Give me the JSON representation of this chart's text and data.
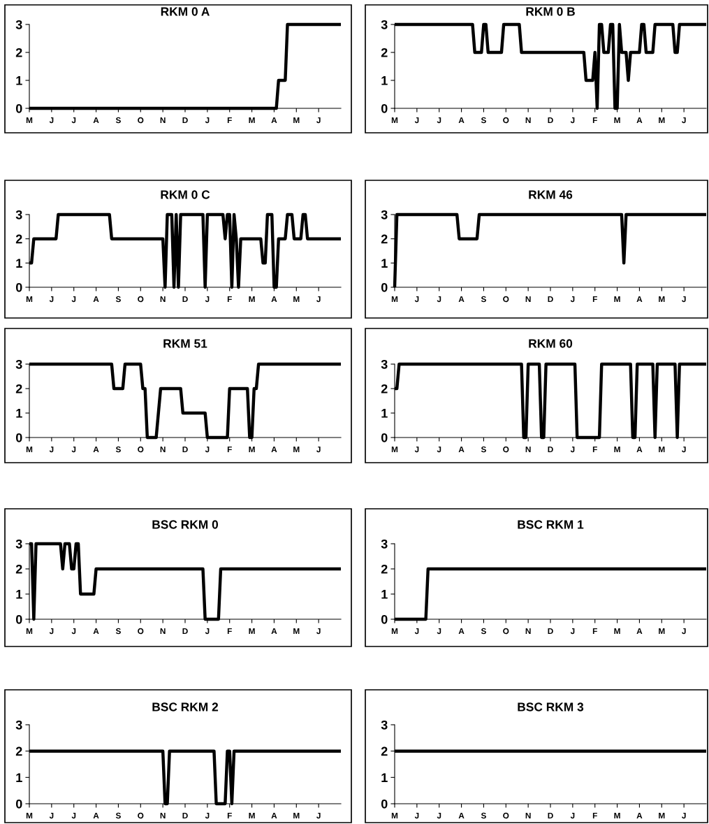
{
  "chart_data": [
    {
      "type": "line",
      "title": "RKM 0 A",
      "color": "#000000",
      "ylim": [
        0,
        3
      ],
      "yticks": [
        0,
        1,
        2,
        3
      ],
      "categories": [
        "M",
        null,
        null,
        null,
        null,
        null,
        null,
        null,
        null,
        null,
        "J",
        null,
        null,
        null,
        null,
        null,
        null,
        null,
        null,
        null,
        "J",
        null,
        null,
        null,
        null,
        null,
        null,
        null,
        null,
        null,
        "A",
        null,
        null,
        null,
        null,
        null,
        null,
        null,
        null,
        null,
        "S",
        null,
        null,
        null,
        null,
        null,
        null,
        null,
        null,
        null,
        "O",
        null,
        null,
        null,
        null,
        null,
        null,
        null,
        null,
        null,
        "N",
        null,
        null,
        null,
        null,
        null,
        null,
        null,
        null,
        null,
        "D",
        null,
        null,
        null,
        null,
        null,
        null,
        null,
        null,
        null,
        "J",
        null,
        null,
        null,
        null,
        null,
        null,
        null,
        null,
        null,
        "F",
        null,
        null,
        null,
        null,
        null,
        null,
        null,
        null,
        null,
        "M",
        null,
        null,
        null,
        null,
        null,
        null,
        null,
        null,
        null,
        "A",
        null,
        null,
        null,
        null,
        null,
        null,
        null,
        null,
        null,
        "M",
        null,
        null,
        null,
        null,
        null,
        null,
        null,
        null,
        null,
        "J",
        null,
        null,
        null,
        null,
        null,
        null,
        null,
        null,
        null,
        null
      ],
      "values": [
        0,
        0,
        0,
        0,
        0,
        0,
        0,
        0,
        0,
        0,
        0,
        0,
        0,
        0,
        0,
        0,
        0,
        0,
        0,
        0,
        0,
        0,
        0,
        0,
        0,
        0,
        0,
        0,
        0,
        0,
        0,
        0,
        0,
        0,
        0,
        0,
        0,
        0,
        0,
        0,
        0,
        0,
        0,
        0,
        0,
        0,
        0,
        0,
        0,
        0,
        0,
        0,
        0,
        0,
        0,
        0,
        0,
        0,
        0,
        0,
        0,
        0,
        0,
        0,
        0,
        0,
        0,
        0,
        0,
        0,
        0,
        0,
        0,
        0,
        0,
        0,
        0,
        0,
        0,
        0,
        0,
        0,
        0,
        0,
        0,
        0,
        0,
        0,
        0,
        0,
        0,
        0,
        0,
        0,
        0,
        0,
        0,
        0,
        0,
        0,
        0,
        0,
        0,
        0,
        0,
        0,
        0,
        0,
        0,
        0,
        0,
        0,
        1,
        1,
        1,
        1,
        3,
        3,
        3,
        3,
        3,
        3,
        3,
        3,
        3,
        3,
        3,
        3,
        3,
        3,
        3,
        3,
        3,
        3,
        3,
        3,
        3,
        3,
        3,
        3,
        3
      ]
    },
    {
      "type": "line",
      "title": "RKM 0 B",
      "color": "#000000",
      "ylim": [
        0,
        3
      ],
      "yticks": [
        0,
        1,
        2,
        3
      ],
      "categories": [
        "M",
        null,
        null,
        null,
        null,
        null,
        null,
        null,
        null,
        null,
        "J",
        null,
        null,
        null,
        null,
        null,
        null,
        null,
        null,
        null,
        "J",
        null,
        null,
        null,
        null,
        null,
        null,
        null,
        null,
        null,
        "A",
        null,
        null,
        null,
        null,
        null,
        null,
        null,
        null,
        null,
        "S",
        null,
        null,
        null,
        null,
        null,
        null,
        null,
        null,
        null,
        "O",
        null,
        null,
        null,
        null,
        null,
        null,
        null,
        null,
        null,
        "N",
        null,
        null,
        null,
        null,
        null,
        null,
        null,
        null,
        null,
        "D",
        null,
        null,
        null,
        null,
        null,
        null,
        null,
        null,
        null,
        "J",
        null,
        null,
        null,
        null,
        null,
        null,
        null,
        null,
        null,
        "F",
        null,
        null,
        null,
        null,
        null,
        null,
        null,
        null,
        null,
        "M",
        null,
        null,
        null,
        null,
        null,
        null,
        null,
        null,
        null,
        "A",
        null,
        null,
        null,
        null,
        null,
        null,
        null,
        null,
        null,
        "M",
        null,
        null,
        null,
        null,
        null,
        null,
        null,
        null,
        null,
        "J",
        null,
        null,
        null,
        null,
        null,
        null,
        null,
        null,
        null,
        null
      ],
      "values": [
        3,
        3,
        3,
        3,
        3,
        3,
        3,
        3,
        3,
        3,
        3,
        3,
        3,
        3,
        3,
        3,
        3,
        3,
        3,
        3,
        3,
        3,
        3,
        3,
        3,
        3,
        3,
        3,
        3,
        3,
        3,
        3,
        3,
        3,
        3,
        3,
        2,
        2,
        2,
        2,
        3,
        3,
        2,
        2,
        2,
        2,
        2,
        2,
        2,
        3,
        3,
        3,
        3,
        3,
        3,
        3,
        3,
        2,
        2,
        2,
        2,
        2,
        2,
        2,
        2,
        2,
        2,
        2,
        2,
        2,
        2,
        2,
        2,
        2,
        2,
        2,
        2,
        2,
        2,
        2,
        2,
        2,
        2,
        2,
        2,
        2,
        1,
        1,
        1,
        1,
        2,
        0,
        3,
        3,
        2,
        2,
        2,
        3,
        3,
        0,
        0,
        3,
        2,
        2,
        2,
        1,
        2,
        2,
        2,
        2,
        2,
        3,
        3,
        2,
        2,
        2,
        2,
        3,
        3,
        3,
        3,
        3,
        3,
        3,
        3,
        3,
        2,
        2,
        3,
        3,
        3,
        3,
        3,
        3,
        3,
        3,
        3,
        3,
        3,
        3,
        3
      ]
    },
    {
      "type": "line",
      "title": "RKM 0 C",
      "color": "#000000",
      "ylim": [
        0,
        3
      ],
      "yticks": [
        0,
        1,
        2,
        3
      ],
      "categories": [
        "M",
        null,
        null,
        null,
        null,
        null,
        null,
        null,
        null,
        null,
        "J",
        null,
        null,
        null,
        null,
        null,
        null,
        null,
        null,
        null,
        "J",
        null,
        null,
        null,
        null,
        null,
        null,
        null,
        null,
        null,
        "A",
        null,
        null,
        null,
        null,
        null,
        null,
        null,
        null,
        null,
        "S",
        null,
        null,
        null,
        null,
        null,
        null,
        null,
        null,
        null,
        "O",
        null,
        null,
        null,
        null,
        null,
        null,
        null,
        null,
        null,
        "N",
        null,
        null,
        null,
        null,
        null,
        null,
        null,
        null,
        null,
        "D",
        null,
        null,
        null,
        null,
        null,
        null,
        null,
        null,
        null,
        "J",
        null,
        null,
        null,
        null,
        null,
        null,
        null,
        null,
        null,
        "F",
        null,
        null,
        null,
        null,
        null,
        null,
        null,
        null,
        null,
        "M",
        null,
        null,
        null,
        null,
        null,
        null,
        null,
        null,
        null,
        "A",
        null,
        null,
        null,
        null,
        null,
        null,
        null,
        null,
        null,
        "M",
        null,
        null,
        null,
        null,
        null,
        null,
        null,
        null,
        null,
        "J",
        null,
        null,
        null,
        null,
        null,
        null,
        null,
        null,
        null,
        null
      ],
      "values": [
        1,
        1,
        2,
        2,
        2,
        2,
        2,
        2,
        2,
        2,
        2,
        2,
        2,
        3,
        3,
        3,
        3,
        3,
        3,
        3,
        3,
        3,
        3,
        3,
        3,
        3,
        3,
        3,
        3,
        3,
        3,
        3,
        3,
        3,
        3,
        3,
        3,
        2,
        2,
        2,
        2,
        2,
        2,
        2,
        2,
        2,
        2,
        2,
        2,
        2,
        2,
        2,
        2,
        2,
        2,
        2,
        2,
        2,
        2,
        2,
        2,
        0,
        3,
        3,
        3,
        0,
        3,
        0,
        3,
        3,
        3,
        3,
        3,
        3,
        3,
        3,
        3,
        3,
        3,
        0,
        3,
        3,
        3,
        3,
        3,
        3,
        3,
        3,
        2,
        3,
        3,
        0,
        3,
        2,
        0,
        2,
        2,
        2,
        2,
        2,
        2,
        2,
        2,
        2,
        2,
        1,
        1,
        3,
        3,
        3,
        0,
        0,
        2,
        2,
        2,
        2,
        3,
        3,
        3,
        2,
        2,
        2,
        2,
        3,
        3,
        2,
        2,
        2,
        2,
        2,
        2,
        2,
        2,
        2,
        2,
        2,
        2,
        2,
        2,
        2,
        2
      ]
    },
    {
      "type": "line",
      "title": "RKM 46",
      "color": "#000000",
      "ylim": [
        0,
        3
      ],
      "yticks": [
        0,
        1,
        2,
        3
      ],
      "categories": [
        "M",
        null,
        null,
        null,
        null,
        null,
        null,
        null,
        null,
        null,
        "J",
        null,
        null,
        null,
        null,
        null,
        null,
        null,
        null,
        null,
        "J",
        null,
        null,
        null,
        null,
        null,
        null,
        null,
        null,
        null,
        "A",
        null,
        null,
        null,
        null,
        null,
        null,
        null,
        null,
        null,
        "S",
        null,
        null,
        null,
        null,
        null,
        null,
        null,
        null,
        null,
        "O",
        null,
        null,
        null,
        null,
        null,
        null,
        null,
        null,
        null,
        "N",
        null,
        null,
        null,
        null,
        null,
        null,
        null,
        null,
        null,
        "D",
        null,
        null,
        null,
        null,
        null,
        null,
        null,
        null,
        null,
        "J",
        null,
        null,
        null,
        null,
        null,
        null,
        null,
        null,
        null,
        "F",
        null,
        null,
        null,
        null,
        null,
        null,
        null,
        null,
        null,
        "M",
        null,
        null,
        null,
        null,
        null,
        null,
        null,
        null,
        null,
        "A",
        null,
        null,
        null,
        null,
        null,
        null,
        null,
        null,
        null,
        "M",
        null,
        null,
        null,
        null,
        null,
        null,
        null,
        null,
        null,
        "J",
        null,
        null,
        null,
        null,
        null,
        null,
        null,
        null,
        null,
        null
      ],
      "values": [
        0,
        3,
        3,
        3,
        3,
        3,
        3,
        3,
        3,
        3,
        3,
        3,
        3,
        3,
        3,
        3,
        3,
        3,
        3,
        3,
        3,
        3,
        3,
        3,
        3,
        3,
        3,
        3,
        3,
        2,
        2,
        2,
        2,
        2,
        2,
        2,
        2,
        2,
        3,
        3,
        3,
        3,
        3,
        3,
        3,
        3,
        3,
        3,
        3,
        3,
        3,
        3,
        3,
        3,
        3,
        3,
        3,
        3,
        3,
        3,
        3,
        3,
        3,
        3,
        3,
        3,
        3,
        3,
        3,
        3,
        3,
        3,
        3,
        3,
        3,
        3,
        3,
        3,
        3,
        3,
        3,
        3,
        3,
        3,
        3,
        3,
        3,
        3,
        3,
        3,
        3,
        3,
        3,
        3,
        3,
        3,
        3,
        3,
        3,
        3,
        3,
        3,
        3,
        1,
        3,
        3,
        3,
        3,
        3,
        3,
        3,
        3,
        3,
        3,
        3,
        3,
        3,
        3,
        3,
        3,
        3,
        3,
        3,
        3,
        3,
        3,
        3,
        3,
        3,
        3,
        3,
        3,
        3,
        3,
        3,
        3,
        3,
        3,
        3,
        3,
        3
      ]
    },
    {
      "type": "line",
      "title": "RKM 51",
      "color": "#000000",
      "ylim": [
        0,
        3
      ],
      "yticks": [
        0,
        1,
        2,
        3
      ],
      "categories": [
        "M",
        null,
        null,
        null,
        null,
        null,
        null,
        null,
        null,
        null,
        "J",
        null,
        null,
        null,
        null,
        null,
        null,
        null,
        null,
        null,
        "J",
        null,
        null,
        null,
        null,
        null,
        null,
        null,
        null,
        null,
        "A",
        null,
        null,
        null,
        null,
        null,
        null,
        null,
        null,
        null,
        "S",
        null,
        null,
        null,
        null,
        null,
        null,
        null,
        null,
        null,
        "O",
        null,
        null,
        null,
        null,
        null,
        null,
        null,
        null,
        null,
        "N",
        null,
        null,
        null,
        null,
        null,
        null,
        null,
        null,
        null,
        "D",
        null,
        null,
        null,
        null,
        null,
        null,
        null,
        null,
        null,
        "J",
        null,
        null,
        null,
        null,
        null,
        null,
        null,
        null,
        null,
        "F",
        null,
        null,
        null,
        null,
        null,
        null,
        null,
        null,
        null,
        "M",
        null,
        null,
        null,
        null,
        null,
        null,
        null,
        null,
        null,
        "A",
        null,
        null,
        null,
        null,
        null,
        null,
        null,
        null,
        null,
        "M",
        null,
        null,
        null,
        null,
        null,
        null,
        null,
        null,
        null,
        "J",
        null,
        null,
        null,
        null,
        null,
        null,
        null,
        null,
        null,
        null
      ],
      "values": [
        3,
        3,
        3,
        3,
        3,
        3,
        3,
        3,
        3,
        3,
        3,
        3,
        3,
        3,
        3,
        3,
        3,
        3,
        3,
        3,
        3,
        3,
        3,
        3,
        3,
        3,
        3,
        3,
        3,
        3,
        3,
        3,
        3,
        3,
        3,
        3,
        3,
        3,
        2,
        2,
        2,
        2,
        2,
        3,
        3,
        3,
        3,
        3,
        3,
        3,
        3,
        2,
        2,
        0,
        0,
        0,
        0,
        0,
        1,
        2,
        2,
        2,
        2,
        2,
        2,
        2,
        2,
        2,
        2,
        1,
        1,
        1,
        1,
        1,
        1,
        1,
        1,
        1,
        1,
        1,
        0,
        0,
        0,
        0,
        0,
        0,
        0,
        0,
        0,
        0,
        2,
        2,
        2,
        2,
        2,
        2,
        2,
        2,
        2,
        0,
        0,
        2,
        2,
        3,
        3,
        3,
        3,
        3,
        3,
        3,
        3,
        3,
        3,
        3,
        3,
        3,
        3,
        3,
        3,
        3,
        3,
        3,
        3,
        3,
        3,
        3,
        3,
        3,
        3,
        3,
        3,
        3,
        3,
        3,
        3,
        3,
        3,
        3,
        3,
        3,
        3
      ]
    },
    {
      "type": "line",
      "title": "RKM 60",
      "color": "#000000",
      "ylim": [
        0,
        3
      ],
      "yticks": [
        0,
        1,
        2,
        3
      ],
      "categories": [
        "M",
        null,
        null,
        null,
        null,
        null,
        null,
        null,
        null,
        null,
        "J",
        null,
        null,
        null,
        null,
        null,
        null,
        null,
        null,
        null,
        "J",
        null,
        null,
        null,
        null,
        null,
        null,
        null,
        null,
        null,
        "A",
        null,
        null,
        null,
        null,
        null,
        null,
        null,
        null,
        null,
        "S",
        null,
        null,
        null,
        null,
        null,
        null,
        null,
        null,
        null,
        "O",
        null,
        null,
        null,
        null,
        null,
        null,
        null,
        null,
        null,
        "N",
        null,
        null,
        null,
        null,
        null,
        null,
        null,
        null,
        null,
        "D",
        null,
        null,
        null,
        null,
        null,
        null,
        null,
        null,
        null,
        "J",
        null,
        null,
        null,
        null,
        null,
        null,
        null,
        null,
        null,
        "F",
        null,
        null,
        null,
        null,
        null,
        null,
        null,
        null,
        null,
        "M",
        null,
        null,
        null,
        null,
        null,
        null,
        null,
        null,
        null,
        "A",
        null,
        null,
        null,
        null,
        null,
        null,
        null,
        null,
        null,
        "M",
        null,
        null,
        null,
        null,
        null,
        null,
        null,
        null,
        null,
        "J",
        null,
        null,
        null,
        null,
        null,
        null,
        null,
        null,
        null,
        null
      ],
      "values": [
        2,
        2,
        3,
        3,
        3,
        3,
        3,
        3,
        3,
        3,
        3,
        3,
        3,
        3,
        3,
        3,
        3,
        3,
        3,
        3,
        3,
        3,
        3,
        3,
        3,
        3,
        3,
        3,
        3,
        3,
        3,
        3,
        3,
        3,
        3,
        3,
        3,
        3,
        3,
        3,
        3,
        3,
        3,
        3,
        3,
        3,
        3,
        3,
        3,
        3,
        3,
        3,
        3,
        3,
        3,
        3,
        3,
        3,
        0,
        0,
        3,
        3,
        3,
        3,
        3,
        3,
        0,
        0,
        3,
        3,
        3,
        3,
        3,
        3,
        3,
        3,
        3,
        3,
        3,
        3,
        3,
        3,
        0,
        0,
        0,
        0,
        0,
        0,
        0,
        0,
        0,
        0,
        0,
        3,
        3,
        3,
        3,
        3,
        3,
        3,
        3,
        3,
        3,
        3,
        3,
        3,
        3,
        0,
        0,
        3,
        3,
        3,
        3,
        3,
        3,
        3,
        3,
        0,
        3,
        3,
        3,
        3,
        3,
        3,
        3,
        3,
        3,
        0,
        3,
        3,
        3,
        3,
        3,
        3,
        3,
        3,
        3,
        3,
        3,
        3,
        3
      ]
    },
    {
      "type": "line",
      "title": "BSC RKM 0",
      "color": "#000000",
      "ylim": [
        0,
        3
      ],
      "yticks": [
        0,
        1,
        2,
        3
      ],
      "categories": [
        "M",
        null,
        null,
        null,
        null,
        null,
        null,
        null,
        null,
        null,
        "J",
        null,
        null,
        null,
        null,
        null,
        null,
        null,
        null,
        null,
        "J",
        null,
        null,
        null,
        null,
        null,
        null,
        null,
        null,
        null,
        "A",
        null,
        null,
        null,
        null,
        null,
        null,
        null,
        null,
        null,
        "S",
        null,
        null,
        null,
        null,
        null,
        null,
        null,
        null,
        null,
        "O",
        null,
        null,
        null,
        null,
        null,
        null,
        null,
        null,
        null,
        "N",
        null,
        null,
        null,
        null,
        null,
        null,
        null,
        null,
        null,
        "D",
        null,
        null,
        null,
        null,
        null,
        null,
        null,
        null,
        null,
        "J",
        null,
        null,
        null,
        null,
        null,
        null,
        null,
        null,
        null,
        "F",
        null,
        null,
        null,
        null,
        null,
        null,
        null,
        null,
        null,
        "M",
        null,
        null,
        null,
        null,
        null,
        null,
        null,
        null,
        null,
        "A",
        null,
        null,
        null,
        null,
        null,
        null,
        null,
        null,
        null,
        "M",
        null,
        null,
        null,
        null,
        null,
        null,
        null,
        null,
        null,
        "J",
        null,
        null,
        null,
        null,
        null,
        null,
        null,
        null,
        null,
        null
      ],
      "values": [
        3,
        3,
        0,
        3,
        3,
        3,
        3,
        3,
        3,
        3,
        3,
        3,
        3,
        3,
        3,
        2,
        3,
        3,
        3,
        2,
        2,
        3,
        3,
        1,
        1,
        1,
        1,
        1,
        1,
        1,
        2,
        2,
        2,
        2,
        2,
        2,
        2,
        2,
        2,
        2,
        2,
        2,
        2,
        2,
        2,
        2,
        2,
        2,
        2,
        2,
        2,
        2,
        2,
        2,
        2,
        2,
        2,
        2,
        2,
        2,
        2,
        2,
        2,
        2,
        2,
        2,
        2,
        2,
        2,
        2,
        2,
        2,
        2,
        2,
        2,
        2,
        2,
        2,
        2,
        0,
        0,
        0,
        0,
        0,
        0,
        0,
        2,
        2,
        2,
        2,
        2,
        2,
        2,
        2,
        2,
        2,
        2,
        2,
        2,
        2,
        2,
        2,
        2,
        2,
        2,
        2,
        2,
        2,
        2,
        2,
        2,
        2,
        2,
        2,
        2,
        2,
        2,
        2,
        2,
        2,
        2,
        2,
        2,
        2,
        2,
        2,
        2,
        2,
        2,
        2,
        2,
        2,
        2,
        2,
        2,
        2,
        2,
        2,
        2,
        2,
        2
      ]
    },
    {
      "type": "line",
      "title": "BSC RKM 1",
      "color": "#000000",
      "ylim": [
        0,
        3
      ],
      "yticks": [
        0,
        1,
        2,
        3
      ],
      "categories": [
        "M",
        null,
        null,
        null,
        null,
        null,
        null,
        null,
        null,
        null,
        "J",
        null,
        null,
        null,
        null,
        null,
        null,
        null,
        null,
        null,
        "J",
        null,
        null,
        null,
        null,
        null,
        null,
        null,
        null,
        null,
        "A",
        null,
        null,
        null,
        null,
        null,
        null,
        null,
        null,
        null,
        "S",
        null,
        null,
        null,
        null,
        null,
        null,
        null,
        null,
        null,
        "O",
        null,
        null,
        null,
        null,
        null,
        null,
        null,
        null,
        null,
        "N",
        null,
        null,
        null,
        null,
        null,
        null,
        null,
        null,
        null,
        "D",
        null,
        null,
        null,
        null,
        null,
        null,
        null,
        null,
        null,
        "J",
        null,
        null,
        null,
        null,
        null,
        null,
        null,
        null,
        null,
        "F",
        null,
        null,
        null,
        null,
        null,
        null,
        null,
        null,
        null,
        "M",
        null,
        null,
        null,
        null,
        null,
        null,
        null,
        null,
        null,
        "A",
        null,
        null,
        null,
        null,
        null,
        null,
        null,
        null,
        null,
        "M",
        null,
        null,
        null,
        null,
        null,
        null,
        null,
        null,
        null,
        "J",
        null,
        null,
        null,
        null,
        null,
        null,
        null,
        null,
        null,
        null
      ],
      "values": [
        0,
        0,
        0,
        0,
        0,
        0,
        0,
        0,
        0,
        0,
        0,
        0,
        0,
        0,
        0,
        2,
        2,
        2,
        2,
        2,
        2,
        2,
        2,
        2,
        2,
        2,
        2,
        2,
        2,
        2,
        2,
        2,
        2,
        2,
        2,
        2,
        2,
        2,
        2,
        2,
        2,
        2,
        2,
        2,
        2,
        2,
        2,
        2,
        2,
        2,
        2,
        2,
        2,
        2,
        2,
        2,
        2,
        2,
        2,
        2,
        2,
        2,
        2,
        2,
        2,
        2,
        2,
        2,
        2,
        2,
        2,
        2,
        2,
        2,
        2,
        2,
        2,
        2,
        2,
        2,
        2,
        2,
        2,
        2,
        2,
        2,
        2,
        2,
        2,
        2,
        2,
        2,
        2,
        2,
        2,
        2,
        2,
        2,
        2,
        2,
        2,
        2,
        2,
        2,
        2,
        2,
        2,
        2,
        2,
        2,
        2,
        2,
        2,
        2,
        2,
        2,
        2,
        2,
        2,
        2,
        2,
        2,
        2,
        2,
        2,
        2,
        2,
        2,
        2,
        2,
        2,
        2,
        2,
        2,
        2,
        2,
        2,
        2,
        2,
        2,
        2
      ]
    },
    {
      "type": "line",
      "title": "BSC RKM 2",
      "color": "#000000",
      "ylim": [
        0,
        3
      ],
      "yticks": [
        0,
        1,
        2,
        3
      ],
      "categories": [
        "M",
        null,
        null,
        null,
        null,
        null,
        null,
        null,
        null,
        null,
        "J",
        null,
        null,
        null,
        null,
        null,
        null,
        null,
        null,
        null,
        "J",
        null,
        null,
        null,
        null,
        null,
        null,
        null,
        null,
        null,
        "A",
        null,
        null,
        null,
        null,
        null,
        null,
        null,
        null,
        null,
        "S",
        null,
        null,
        null,
        null,
        null,
        null,
        null,
        null,
        null,
        "O",
        null,
        null,
        null,
        null,
        null,
        null,
        null,
        null,
        null,
        "N",
        null,
        null,
        null,
        null,
        null,
        null,
        null,
        null,
        null,
        "D",
        null,
        null,
        null,
        null,
        null,
        null,
        null,
        null,
        null,
        "J",
        null,
        null,
        null,
        null,
        null,
        null,
        null,
        null,
        null,
        "F",
        null,
        null,
        null,
        null,
        null,
        null,
        null,
        null,
        null,
        "M",
        null,
        null,
        null,
        null,
        null,
        null,
        null,
        null,
        null,
        "A",
        null,
        null,
        null,
        null,
        null,
        null,
        null,
        null,
        null,
        "M",
        null,
        null,
        null,
        null,
        null,
        null,
        null,
        null,
        null,
        "J",
        null,
        null,
        null,
        null,
        null,
        null,
        null,
        null,
        null,
        null
      ],
      "values": [
        2,
        2,
        2,
        2,
        2,
        2,
        2,
        2,
        2,
        2,
        2,
        2,
        2,
        2,
        2,
        2,
        2,
        2,
        2,
        2,
        2,
        2,
        2,
        2,
        2,
        2,
        2,
        2,
        2,
        2,
        2,
        2,
        2,
        2,
        2,
        2,
        2,
        2,
        2,
        2,
        2,
        2,
        2,
        2,
        2,
        2,
        2,
        2,
        2,
        2,
        2,
        2,
        2,
        2,
        2,
        2,
        2,
        2,
        2,
        2,
        2,
        0,
        0,
        2,
        2,
        2,
        2,
        2,
        2,
        2,
        2,
        2,
        2,
        2,
        2,
        2,
        2,
        2,
        2,
        2,
        2,
        2,
        2,
        2,
        0,
        0,
        0,
        0,
        0,
        2,
        2,
        0,
        2,
        2,
        2,
        2,
        2,
        2,
        2,
        2,
        2,
        2,
        2,
        2,
        2,
        2,
        2,
        2,
        2,
        2,
        2,
        2,
        2,
        2,
        2,
        2,
        2,
        2,
        2,
        2,
        2,
        2,
        2,
        2,
        2,
        2,
        2,
        2,
        2,
        2,
        2,
        2,
        2,
        2,
        2,
        2,
        2,
        2,
        2,
        2,
        2
      ]
    },
    {
      "type": "line",
      "title": "BSC RKM 3",
      "color": "#000000",
      "ylim": [
        0,
        3
      ],
      "yticks": [
        0,
        1,
        2,
        3
      ],
      "categories": [
        "M",
        null,
        null,
        null,
        null,
        null,
        null,
        null,
        null,
        null,
        "J",
        null,
        null,
        null,
        null,
        null,
        null,
        null,
        null,
        null,
        "J",
        null,
        null,
        null,
        null,
        null,
        null,
        null,
        null,
        null,
        "A",
        null,
        null,
        null,
        null,
        null,
        null,
        null,
        null,
        null,
        "S",
        null,
        null,
        null,
        null,
        null,
        null,
        null,
        null,
        null,
        "O",
        null,
        null,
        null,
        null,
        null,
        null,
        null,
        null,
        null,
        "N",
        null,
        null,
        null,
        null,
        null,
        null,
        null,
        null,
        null,
        "D",
        null,
        null,
        null,
        null,
        null,
        null,
        null,
        null,
        null,
        "J",
        null,
        null,
        null,
        null,
        null,
        null,
        null,
        null,
        null,
        "F",
        null,
        null,
        null,
        null,
        null,
        null,
        null,
        null,
        null,
        "M",
        null,
        null,
        null,
        null,
        null,
        null,
        null,
        null,
        null,
        "A",
        null,
        null,
        null,
        null,
        null,
        null,
        null,
        null,
        null,
        "M",
        null,
        null,
        null,
        null,
        null,
        null,
        null,
        null,
        null,
        "J",
        null,
        null,
        null,
        null,
        null,
        null,
        null,
        null,
        null,
        null
      ],
      "values": [
        2,
        2,
        2,
        2,
        2,
        2,
        2,
        2,
        2,
        2,
        2,
        2,
        2,
        2,
        2,
        2,
        2,
        2,
        2,
        2,
        2,
        2,
        2,
        2,
        2,
        2,
        2,
        2,
        2,
        2,
        2,
        2,
        2,
        2,
        2,
        2,
        2,
        2,
        2,
        2,
        2,
        2,
        2,
        2,
        2,
        2,
        2,
        2,
        2,
        2,
        2,
        2,
        2,
        2,
        2,
        2,
        2,
        2,
        2,
        2,
        2,
        2,
        2,
        2,
        2,
        2,
        2,
        2,
        2,
        2,
        2,
        2,
        2,
        2,
        2,
        2,
        2,
        2,
        2,
        2,
        2,
        2,
        2,
        2,
        2,
        2,
        2,
        2,
        2,
        2,
        2,
        2,
        2,
        2,
        2,
        2,
        2,
        2,
        2,
        2,
        2,
        2,
        2,
        2,
        2,
        2,
        2,
        2,
        2,
        2,
        2,
        2,
        2,
        2,
        2,
        2,
        2,
        2,
        2,
        2,
        2,
        2,
        2,
        2,
        2,
        2,
        2,
        2,
        2,
        2,
        2,
        2,
        2,
        2,
        2,
        2,
        2,
        2,
        2,
        2,
        2
      ]
    }
  ]
}
